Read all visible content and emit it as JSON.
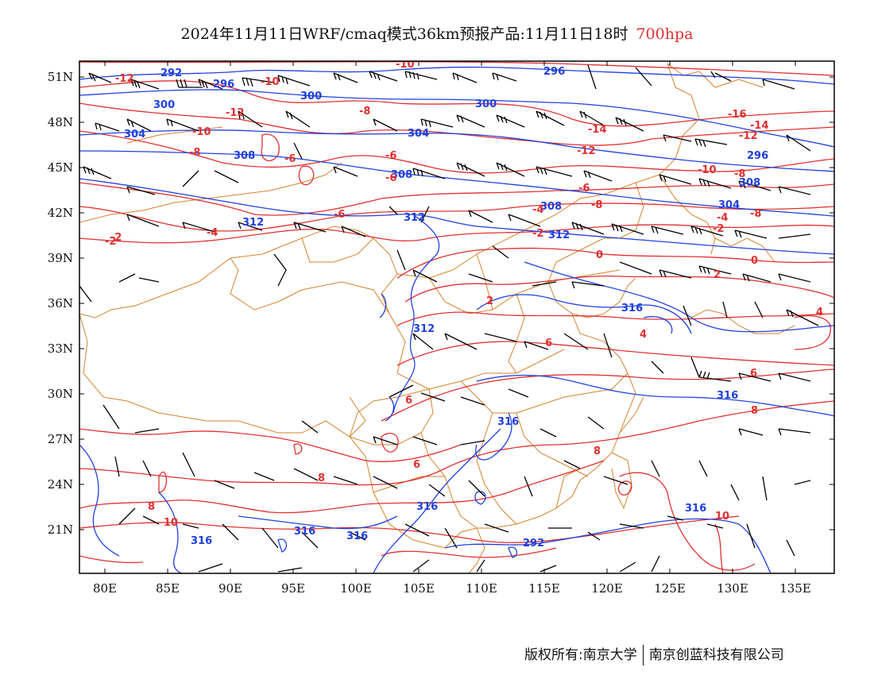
{
  "title": {
    "main": "2024年11月11日WRF/cmaq模式36km预报产品:11月11日18时",
    "level": "700hpa"
  },
  "footer": {
    "left": "版权所有:南京大学",
    "right": "南京创蓝科技有限公司"
  },
  "axes": {
    "y_labels": [
      "51N",
      "48N",
      "45N",
      "42N",
      "39N",
      "36N",
      "33N",
      "30N",
      "27N",
      "24N",
      "21N"
    ],
    "x_labels": [
      "80E",
      "85E",
      "90E",
      "95E",
      "100E",
      "105E",
      "110E",
      "115E",
      "120E",
      "125E",
      "130E",
      "135E"
    ]
  },
  "colors": {
    "height_contour": "#2040e0",
    "temperature_contour": "#e03030",
    "boundary": "#d4822c",
    "wind_barb": "#000000"
  },
  "geopotential_height_labels": [
    "292",
    "296",
    "300",
    "304",
    "308",
    "312",
    "316"
  ],
  "temperature_labels": [
    "-16",
    "-14",
    "-12",
    "-10",
    "-8",
    "-6",
    "-4",
    "-2",
    "0",
    "2",
    "4",
    "6",
    "8",
    "10"
  ],
  "contour_labels_height_on_map": [
    "292",
    "296",
    "296",
    "300",
    "300",
    "304",
    "304",
    "300",
    "308",
    "308",
    "308",
    "296",
    "312",
    "312",
    "308",
    "304",
    "312",
    "316",
    "312",
    "316",
    "316",
    "316",
    "316",
    "316",
    "316",
    "316",
    "292"
  ],
  "contour_labels_temp_on_map": [
    "-12",
    "-10",
    "-12",
    "-10",
    "-8",
    "-8",
    "-6",
    "-6",
    "-6",
    "-14",
    "-12",
    "-16",
    "-14",
    "-12",
    "-10",
    "-8",
    "-8",
    "-8",
    "-6",
    "-6",
    "-4",
    "-4",
    "-2",
    "-2",
    "-4",
    "-2",
    "0",
    "0",
    "2",
    "2",
    "4",
    "4",
    "6",
    "6",
    "6",
    "6",
    "8",
    "8",
    "8",
    "8",
    "10",
    "10",
    "-2",
    "-10"
  ]
}
